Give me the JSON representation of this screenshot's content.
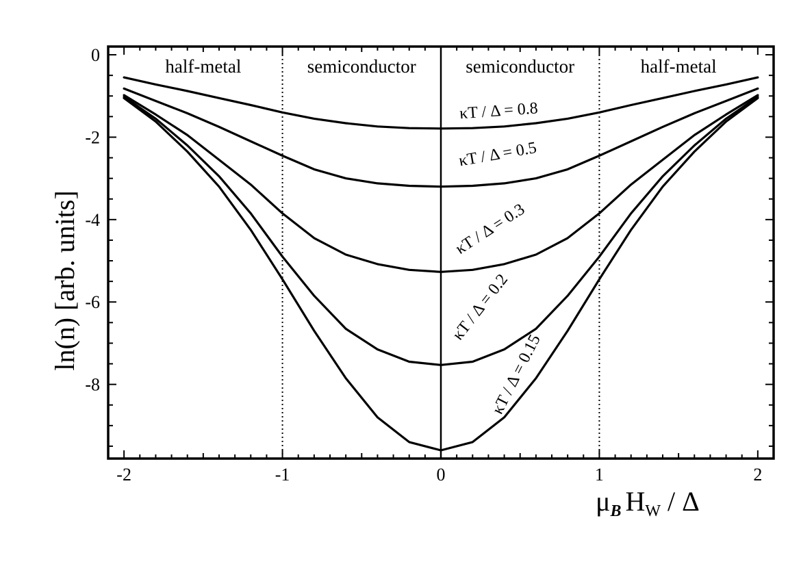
{
  "chart_data": {
    "type": "line",
    "xlabel": {
      "main": "μ",
      "sub_b": "B",
      "main2": "H",
      "sub_w": "W",
      "tail": " / Δ"
    },
    "ylabel": "ln(n) [arb. units]",
    "xlim": [
      -2.1,
      2.1
    ],
    "ylim": [
      -9.8,
      0.2
    ],
    "x_ticks": [
      -2,
      -1,
      0,
      1,
      2
    ],
    "x_tick_labels": [
      "-2",
      "-1",
      "0",
      "1",
      "2"
    ],
    "y_ticks": [
      0,
      -2,
      -4,
      -6,
      -8
    ],
    "y_tick_labels": [
      "0",
      "-2",
      "-4",
      "-6",
      "-8"
    ],
    "grid": false,
    "legend": "none",
    "vertical_lines": [
      {
        "x": -1,
        "style": "dotted"
      },
      {
        "x": 0,
        "style": "solid"
      },
      {
        "x": 1,
        "style": "dotted"
      }
    ],
    "regions": [
      {
        "label": "half-metal",
        "x_center": -1.5
      },
      {
        "label": "semiconductor",
        "x_center": -0.5
      },
      {
        "label": "semiconductor",
        "x_center": 0.5
      },
      {
        "label": "half-metal",
        "x_center": 1.5
      }
    ],
    "x": [
      -2.0,
      -1.8,
      -1.6,
      -1.4,
      -1.2,
      -1.0,
      -0.8,
      -0.6,
      -0.4,
      -0.2,
      0.0,
      0.2,
      0.4,
      0.6,
      0.8,
      1.0,
      1.2,
      1.4,
      1.6,
      1.8,
      2.0
    ],
    "series": [
      {
        "name": "κT / Δ = 0.8",
        "label_x": 0.12,
        "label_y": -1.55,
        "label_angle": -4,
        "values": [
          -0.55,
          -0.72,
          -0.88,
          -1.05,
          -1.22,
          -1.4,
          -1.55,
          -1.66,
          -1.74,
          -1.78,
          -1.79,
          -1.78,
          -1.74,
          -1.66,
          -1.55,
          -1.4,
          -1.22,
          -1.05,
          -0.88,
          -0.72,
          -0.55
        ]
      },
      {
        "name": "κT / Δ = 0.5",
        "label_x": 0.12,
        "label_y": -2.7,
        "label_angle": -10,
        "values": [
          -0.82,
          -1.12,
          -1.42,
          -1.75,
          -2.1,
          -2.45,
          -2.78,
          -3.0,
          -3.12,
          -3.18,
          -3.2,
          -3.18,
          -3.12,
          -3.0,
          -2.78,
          -2.45,
          -2.1,
          -1.75,
          -1.42,
          -1.12,
          -0.82
        ]
      },
      {
        "name": "κT / Δ = 0.3",
        "label_x": 0.12,
        "label_y": -4.85,
        "label_angle": -33,
        "values": [
          -0.98,
          -1.45,
          -1.95,
          -2.55,
          -3.15,
          -3.85,
          -4.45,
          -4.85,
          -5.08,
          -5.22,
          -5.27,
          -5.22,
          -5.08,
          -4.85,
          -4.45,
          -3.85,
          -3.15,
          -2.55,
          -1.95,
          -1.45,
          -0.98
        ]
      },
      {
        "name": "κT / Δ = 0.2",
        "label_x": 0.12,
        "label_y": -6.95,
        "label_angle": -52,
        "values": [
          -1.02,
          -1.55,
          -2.2,
          -2.95,
          -3.85,
          -4.9,
          -5.85,
          -6.65,
          -7.15,
          -7.45,
          -7.53,
          -7.45,
          -7.15,
          -6.65,
          -5.85,
          -4.9,
          -3.85,
          -2.95,
          -2.2,
          -1.55,
          -1.02
        ]
      },
      {
        "name": "κT / Δ = 0.15",
        "label_x": 0.38,
        "label_y": -8.75,
        "label_angle": -63,
        "values": [
          -1.05,
          -1.62,
          -2.35,
          -3.2,
          -4.25,
          -5.45,
          -6.7,
          -7.85,
          -8.8,
          -9.4,
          -9.6,
          -9.4,
          -8.8,
          -7.85,
          -6.7,
          -5.45,
          -4.25,
          -3.2,
          -2.35,
          -1.62,
          -1.05
        ]
      }
    ]
  }
}
